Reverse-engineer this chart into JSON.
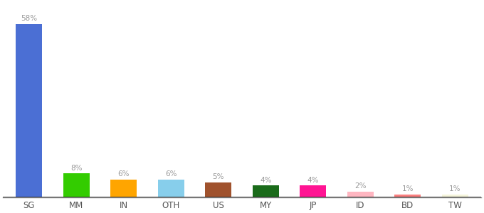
{
  "categories": [
    "SG",
    "MM",
    "IN",
    "OTH",
    "US",
    "MY",
    "JP",
    "ID",
    "BD",
    "TW"
  ],
  "values": [
    58,
    8,
    6,
    6,
    5,
    4,
    4,
    2,
    1,
    1
  ],
  "labels": [
    "58%",
    "8%",
    "6%",
    "6%",
    "5%",
    "4%",
    "4%",
    "2%",
    "1%",
    "1%"
  ],
  "bar_colors": [
    "#4B6FD4",
    "#33CC00",
    "#FFA500",
    "#87CEEB",
    "#A0522D",
    "#1A6B1A",
    "#FF1493",
    "#FFB6C1",
    "#FA8080",
    "#F5F5DC"
  ],
  "background_color": "#ffffff",
  "ylim": [
    0,
    65
  ],
  "label_fontsize": 7.5,
  "tick_fontsize": 8.5,
  "label_color": "#999999"
}
